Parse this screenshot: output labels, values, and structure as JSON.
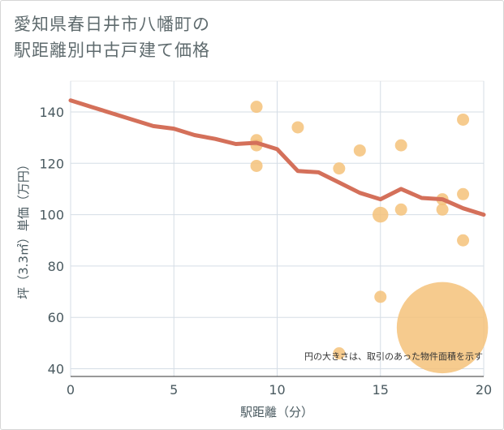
{
  "chart_data": {
    "type": "scatter",
    "title": "愛知県春日井市八幡町の\n駅距離別中古戸建て価格",
    "xlabel": "駅距離（分）",
    "ylabel": "坪（3.3㎡）単価（万円）",
    "xlim": [
      0,
      20
    ],
    "ylim": [
      37,
      152
    ],
    "xticks": [
      0,
      5,
      10,
      15,
      20
    ],
    "yticks": [
      40,
      60,
      80,
      100,
      120,
      140
    ],
    "note": "円の大きさは、取引のあった物件面積を示す",
    "colors": {
      "point": "#f5c27a",
      "line": "#d4705a"
    },
    "points": [
      {
        "x": 9,
        "y": 142,
        "size": 1
      },
      {
        "x": 9,
        "y": 129,
        "size": 1
      },
      {
        "x": 9,
        "y": 127,
        "size": 1
      },
      {
        "x": 9,
        "y": 119,
        "size": 1
      },
      {
        "x": 11,
        "y": 134,
        "size": 1
      },
      {
        "x": 13,
        "y": 118,
        "size": 1
      },
      {
        "x": 13,
        "y": 46,
        "size": 1
      },
      {
        "x": 14,
        "y": 125,
        "size": 1
      },
      {
        "x": 15,
        "y": 100,
        "size": 1.3
      },
      {
        "x": 15,
        "y": 68,
        "size": 1
      },
      {
        "x": 16,
        "y": 127,
        "size": 1
      },
      {
        "x": 16,
        "y": 102,
        "size": 1
      },
      {
        "x": 18,
        "y": 106,
        "size": 1
      },
      {
        "x": 18,
        "y": 102,
        "size": 1
      },
      {
        "x": 18,
        "y": 56,
        "size": 7.5
      },
      {
        "x": 19,
        "y": 137,
        "size": 1
      },
      {
        "x": 19,
        "y": 108,
        "size": 1
      },
      {
        "x": 19,
        "y": 90,
        "size": 1
      }
    ],
    "trend": {
      "x": [
        0,
        1,
        2,
        3,
        4,
        5,
        6,
        7,
        8,
        9,
        10,
        11,
        12,
        13,
        14,
        15,
        16,
        17,
        18,
        19,
        20
      ],
      "y": [
        144.5,
        142,
        139.5,
        137,
        134.5,
        133.5,
        131,
        129.5,
        127.5,
        128,
        125.5,
        117,
        116.5,
        112.5,
        108.5,
        106,
        110,
        106.5,
        106,
        102.5,
        100
      ]
    }
  }
}
